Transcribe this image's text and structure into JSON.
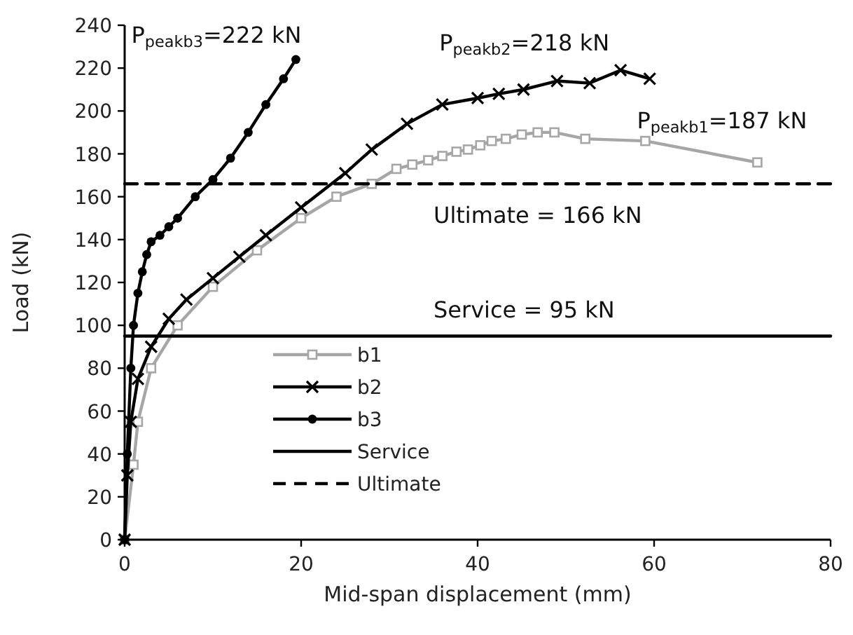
{
  "chart_data": {
    "type": "line",
    "xlabel": "Mid-span displacement (mm)",
    "ylabel": "Load (kN)",
    "xlim": [
      0,
      80
    ],
    "xticks": [
      0,
      20,
      40,
      60,
      80
    ],
    "ylim": [
      0,
      240
    ],
    "yticks": [
      0,
      20,
      40,
      60,
      80,
      100,
      120,
      140,
      160,
      180,
      200,
      220,
      240
    ],
    "grid": false,
    "legend": "bottom left",
    "series": [
      {
        "name": "b1",
        "color": "#a6a6a6",
        "marker": "square",
        "x": [
          0,
          1,
          1.5,
          3,
          6,
          10,
          15,
          20,
          24,
          28,
          30.8,
          32.6,
          34.4,
          36,
          37.6,
          38.9,
          40.3,
          41.6,
          43.2,
          45,
          46.8,
          48.7,
          52.2,
          59,
          71.7
        ],
        "values": [
          0,
          35,
          55,
          80,
          100,
          118,
          135,
          150,
          160,
          166,
          173,
          175,
          177,
          179,
          181,
          182,
          184,
          186,
          187,
          189,
          190,
          190,
          187,
          186,
          176
        ]
      },
      {
        "name": "b2",
        "color": "#000000",
        "marker": "cross",
        "x": [
          0,
          0.3,
          0.7,
          1.5,
          3,
          5,
          7,
          10,
          13,
          16,
          20,
          25,
          28,
          32,
          36,
          40,
          42.4,
          45.2,
          49,
          52.7,
          56.2,
          59.5
        ],
        "values": [
          0,
          30,
          55,
          75,
          90,
          103,
          112,
          122,
          132,
          142,
          155,
          171,
          182,
          194,
          203,
          206,
          208,
          210,
          214,
          213,
          219,
          215
        ]
      },
      {
        "name": "b3",
        "color": "#000000",
        "marker": "circle",
        "x": [
          0,
          0.3,
          0.7,
          1,
          1.5,
          2,
          2.5,
          3,
          4,
          5,
          6,
          8,
          10,
          12,
          14,
          16,
          18,
          19.4
        ],
        "values": [
          0,
          40,
          80,
          100,
          115,
          125,
          133,
          139,
          142,
          146,
          150,
          160,
          168,
          178,
          190,
          203,
          215,
          224
        ]
      },
      {
        "name": "Service",
        "color": "#000000",
        "marker": "none",
        "line_style": "solid",
        "x": [
          0,
          80
        ],
        "values": [
          95,
          95
        ]
      },
      {
        "name": "Ultimate",
        "color": "#000000",
        "marker": "none",
        "line_style": "dashed",
        "x": [
          0,
          80
        ],
        "values": [
          166,
          166
        ]
      }
    ],
    "annotations": [
      {
        "text": "P$_{peakb3}$=222 kN",
        "x": 19.4,
        "y": 224
      },
      {
        "text": "P$_{peakb2}$=218 kN",
        "x": 56.2,
        "y": 219
      },
      {
        "text": "P$_{peakb1}$=187 kN",
        "x": 59,
        "y": 186
      },
      {
        "text": "Ultimate = 166 kN",
        "x": 35,
        "y": 166
      },
      {
        "text": "Service = 95 kN",
        "x": 35,
        "y": 95
      }
    ]
  }
}
